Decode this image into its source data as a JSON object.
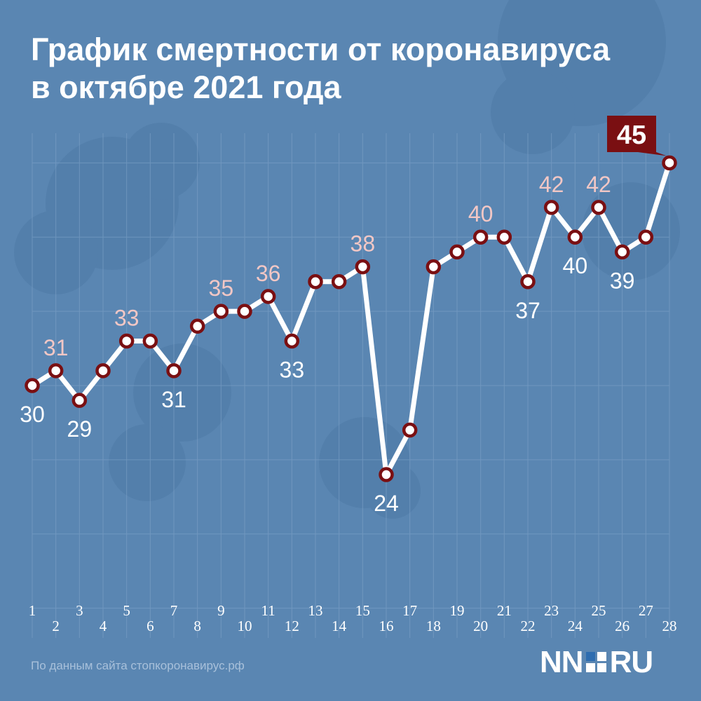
{
  "title_line1": "График смертности от коронавируса",
  "title_line2": "в октябре 2021 года",
  "source_text": "По данным сайта стопкоронавирус.рф",
  "logo": {
    "left": "NN",
    "right": "RU"
  },
  "colors": {
    "background": "#5a86b2",
    "line": "#ffffff",
    "marker_ring": "#7a0f12",
    "label_above": "#f2c7c5",
    "label_below": "#ffffff",
    "callout": "#7a0f12"
  },
  "chart_data": {
    "type": "line",
    "title": "График смертности от коронавируса в октябре 2021 года",
    "xlabel": "",
    "ylabel": "",
    "x": [
      1,
      2,
      3,
      4,
      5,
      6,
      7,
      8,
      9,
      10,
      11,
      12,
      13,
      14,
      15,
      16,
      17,
      18,
      19,
      20,
      21,
      22,
      23,
      24,
      25,
      26,
      27,
      28
    ],
    "values": [
      30,
      31,
      29,
      31,
      33,
      33,
      31,
      34,
      35,
      35,
      36,
      33,
      37,
      37,
      38,
      24,
      27,
      38,
      39,
      40,
      40,
      37,
      42,
      40,
      42,
      39,
      40,
      45
    ],
    "ylim": [
      13,
      47
    ],
    "grid": true,
    "data_labels": [
      {
        "day": 1,
        "text": "30",
        "position": "below"
      },
      {
        "day": 2,
        "text": "31",
        "position": "above"
      },
      {
        "day": 3,
        "text": "29",
        "position": "below"
      },
      {
        "day": 5,
        "text": "33",
        "position": "above"
      },
      {
        "day": 7,
        "text": "31",
        "position": "below"
      },
      {
        "day": 9,
        "text": "35",
        "position": "above"
      },
      {
        "day": 11,
        "text": "36",
        "position": "above"
      },
      {
        "day": 12,
        "text": "33",
        "position": "below"
      },
      {
        "day": 15,
        "text": "38",
        "position": "above"
      },
      {
        "day": 16,
        "text": "24",
        "position": "below"
      },
      {
        "day": 20,
        "text": "40",
        "position": "above"
      },
      {
        "day": 22,
        "text": "37",
        "position": "below"
      },
      {
        "day": 23,
        "text": "42",
        "position": "above"
      },
      {
        "day": 24,
        "text": "40",
        "position": "below"
      },
      {
        "day": 25,
        "text": "42",
        "position": "above"
      },
      {
        "day": 26,
        "text": "39",
        "position": "below"
      }
    ],
    "highlight": {
      "day": 28,
      "text": "45"
    }
  }
}
